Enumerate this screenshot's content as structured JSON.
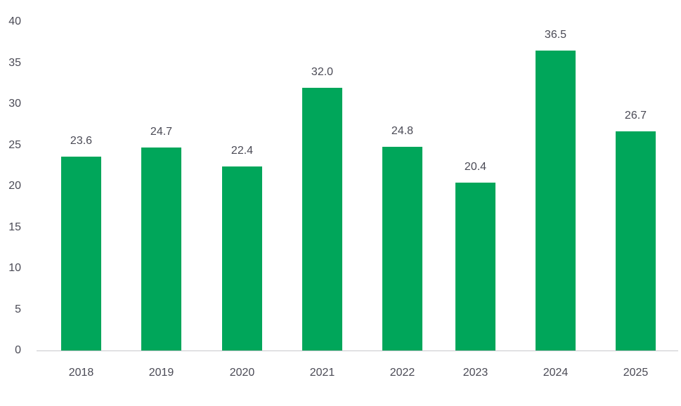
{
  "chart_data": {
    "type": "bar",
    "title": "",
    "xlabel": "",
    "ylabel": "",
    "categories": [
      "2018",
      "2019",
      "2020",
      "2021",
      "2022",
      "2023",
      "2024",
      "2025"
    ],
    "values": [
      23.6,
      24.7,
      22.4,
      32.0,
      24.8,
      20.4,
      36.5,
      26.7
    ],
    "value_labels": [
      "23.6",
      "24.7",
      "22.4",
      "32.0",
      "24.8",
      "20.4",
      "36.5",
      "26.7"
    ],
    "ylim": [
      0,
      40
    ],
    "yticks": [
      "0",
      "5",
      "10",
      "15",
      "20",
      "25",
      "30",
      "35",
      "40"
    ],
    "grid": false,
    "legend": null,
    "bar_color": "#00a65a"
  }
}
